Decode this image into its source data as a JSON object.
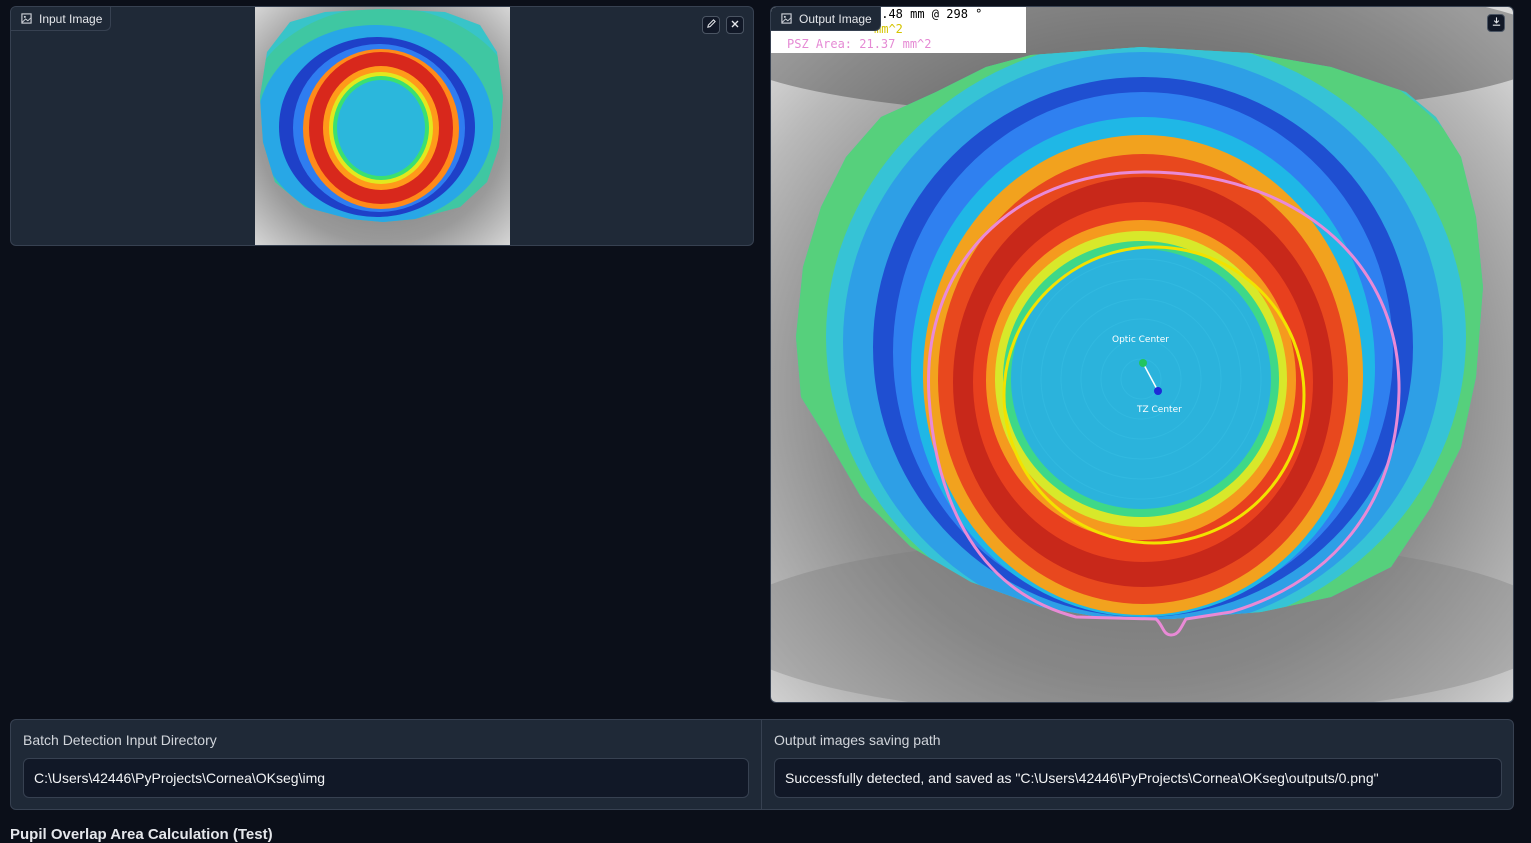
{
  "input_panel": {
    "label": "Input Image",
    "icons": [
      "image-icon",
      "pencil-icon",
      "close-icon"
    ]
  },
  "output_panel": {
    "label": "Output Image",
    "icons": [
      "image-icon",
      "download-icon"
    ],
    "overlay": {
      "line1": "0.48 mm @ 298 °",
      "line2": "mm^2",
      "line3": "PSZ Area: 21.37 mm^2"
    },
    "annotations": {
      "optic_center": "Optic Center",
      "tz_center": "TZ Center"
    },
    "colors": {
      "psz_contour": "#e98ad6",
      "tz_contour": "#f2e200",
      "optic_center_dot": "#22c55e",
      "tz_center_dot": "#1d2bd8"
    }
  },
  "batch": {
    "input_label": "Batch Detection Input Directory",
    "input_value": "C:\\Users\\42446\\PyProjects\\Cornea\\OKseg\\img",
    "output_label": "Output images saving path",
    "output_value": "Successfully detected, and saved as \"C:\\Users\\42446\\PyProjects\\Cornea\\OKseg\\outputs/0.png\""
  },
  "next_section": {
    "title": "Pupil Overlap Area Calculation (Test)"
  }
}
